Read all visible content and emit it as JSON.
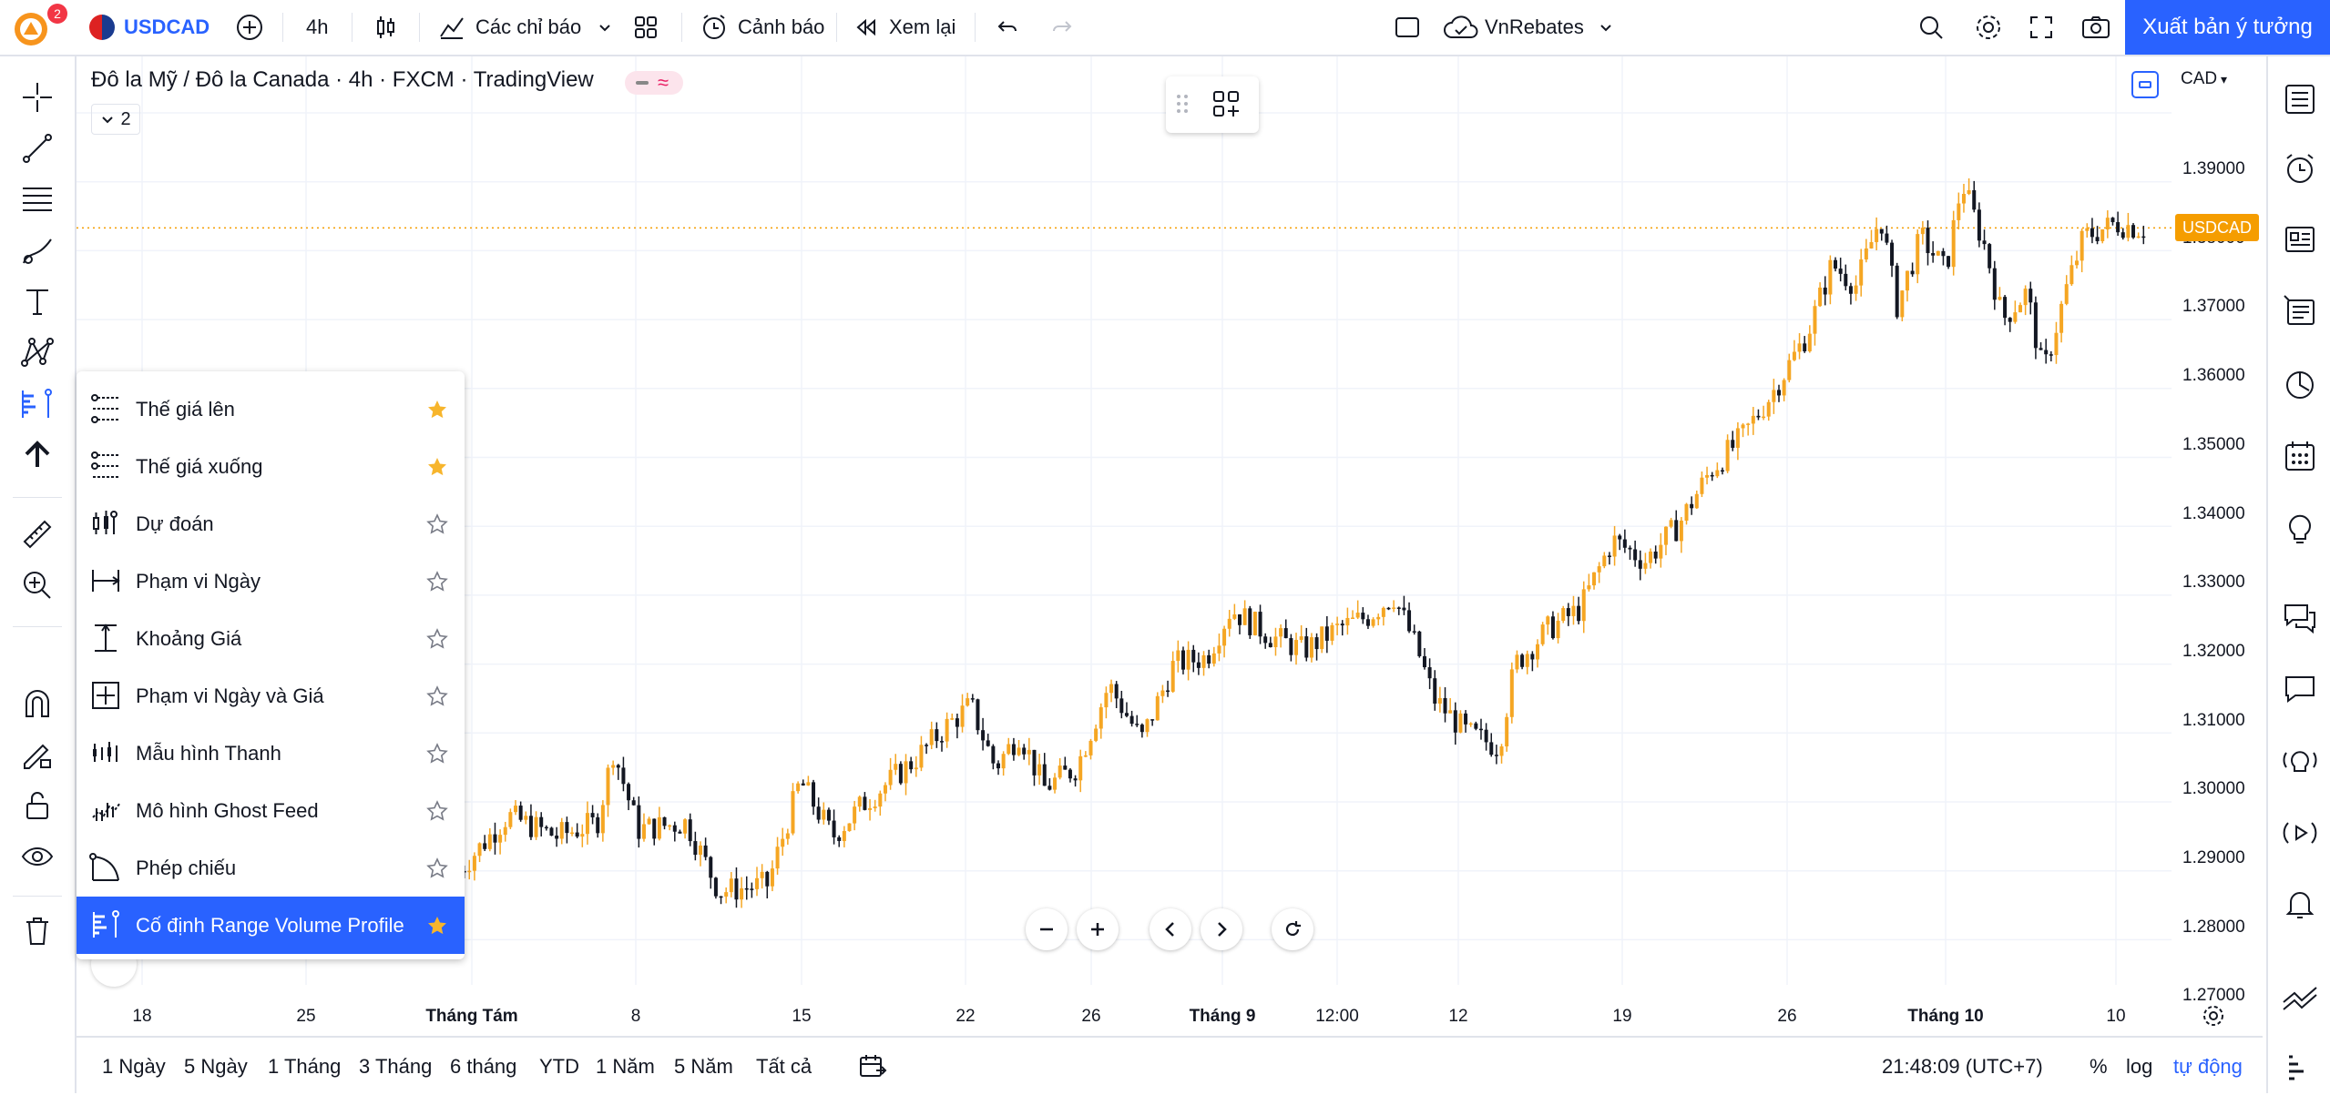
{
  "topbar": {
    "notification_count": "2",
    "symbol": "USDCAD",
    "interval": "4h",
    "indicators_label": "Các chỉ báo",
    "alert_label": "Cảnh báo",
    "replay_label": "Xem lại",
    "layout_name": "VnRebates",
    "publish_label": "Xuất bản ý tưởng"
  },
  "legend": {
    "title": "Đô la Mỹ / Đô la Canada · 4h · FXCM · TradingView",
    "collapse_count": "2"
  },
  "price_axis": {
    "currency": "CAD",
    "ticks": [
      "1.39000",
      "1.38000",
      "1.37000",
      "1.36000",
      "1.35000",
      "1.34000",
      "1.33000",
      "1.32000",
      "1.31000",
      "1.30000",
      "1.29000",
      "1.28000",
      "1.27000"
    ],
    "symbol_badge": "USDCAD",
    "last_price": 1.3733
  },
  "time_axis": {
    "ticks": [
      {
        "label": "18",
        "bold": false
      },
      {
        "label": "25",
        "bold": false
      },
      {
        "label": "Tháng Tám",
        "bold": true
      },
      {
        "label": "8",
        "bold": false
      },
      {
        "label": "15",
        "bold": false
      },
      {
        "label": "22",
        "bold": false
      },
      {
        "label": "26",
        "bold": false
      },
      {
        "label": "Tháng 9",
        "bold": true
      },
      {
        "label": "12:00",
        "bold": false
      },
      {
        "label": "12",
        "bold": false
      },
      {
        "label": "19",
        "bold": false
      },
      {
        "label": "26",
        "bold": false
      },
      {
        "label": "Tháng 10",
        "bold": true
      },
      {
        "label": "10",
        "bold": false
      }
    ]
  },
  "bottombar": {
    "ranges": [
      "1 Ngày",
      "5 Ngày",
      "1 Tháng",
      "3 Tháng",
      "6 tháng",
      "YTD",
      "1 Năm",
      "5 Năm",
      "Tất cả"
    ],
    "clock": "21:48:09 (UTC+7)",
    "percent_label": "%",
    "log_label": "log",
    "auto_label": "tự động"
  },
  "menu": {
    "items": [
      {
        "label": "Thế giá lên",
        "icon": "long-position-icon",
        "starred": true
      },
      {
        "label": "Thế giá xuống",
        "icon": "short-position-icon",
        "starred": true
      },
      {
        "label": "Dự đoán",
        "icon": "forecast-icon",
        "starred": false
      },
      {
        "label": "Phạm vi Ngày",
        "icon": "date-range-icon",
        "starred": false
      },
      {
        "label": "Khoảng Giá",
        "icon": "price-range-icon",
        "starred": false
      },
      {
        "label": "Phạm vi Ngày và Giá",
        "icon": "date-price-range-icon",
        "starred": false
      },
      {
        "label": "Mẫu hình Thanh",
        "icon": "bars-pattern-icon",
        "starred": false
      },
      {
        "label": "Mô hình Ghost Feed",
        "icon": "ghost-feed-icon",
        "starred": false
      },
      {
        "label": "Phép chiếu",
        "icon": "projection-icon",
        "starred": false
      },
      {
        "label": "Cố định Range Volume Profile",
        "icon": "fixed-range-volume-profile-icon",
        "starred": true,
        "selected": true
      }
    ]
  },
  "colors": {
    "up": "#f5a623",
    "down": "#131722",
    "accent": "#2962ff",
    "badge": "#f59d00",
    "star": "#f7b52c"
  },
  "chart_data": {
    "type": "candlestick",
    "symbol": "USDCAD",
    "timeframe": "4h",
    "ylim": [
      1.265,
      1.393
    ],
    "close_path": [
      [
        0.0,
        1.28
      ],
      [
        0.03,
        1.288
      ],
      [
        0.06,
        1.285
      ],
      [
        0.085,
        1.287
      ],
      [
        0.095,
        1.2975
      ],
      [
        0.11,
        1.286
      ],
      [
        0.14,
        1.287
      ],
      [
        0.16,
        1.277
      ],
      [
        0.19,
        1.278
      ],
      [
        0.21,
        1.293
      ],
      [
        0.23,
        1.285
      ],
      [
        0.25,
        1.29
      ],
      [
        0.28,
        1.296
      ],
      [
        0.3,
        1.301
      ],
      [
        0.315,
        1.304
      ],
      [
        0.33,
        1.295
      ],
      [
        0.345,
        1.3
      ],
      [
        0.36,
        1.292
      ],
      [
        0.38,
        1.295
      ],
      [
        0.4,
        1.307
      ],
      [
        0.42,
        1.299
      ],
      [
        0.44,
        1.31
      ],
      [
        0.46,
        1.311
      ],
      [
        0.475,
        1.318
      ],
      [
        0.5,
        1.314
      ],
      [
        0.52,
        1.312
      ],
      [
        0.54,
        1.315
      ],
      [
        0.56,
        1.317
      ],
      [
        0.575,
        1.32
      ],
      [
        0.59,
        1.312
      ],
      [
        0.6,
        1.305
      ],
      [
        0.62,
        1.3
      ],
      [
        0.64,
        1.298
      ],
      [
        0.65,
        1.31
      ],
      [
        0.67,
        1.315
      ],
      [
        0.69,
        1.318
      ],
      [
        0.71,
        1.328
      ],
      [
        0.73,
        1.325
      ],
      [
        0.75,
        1.33
      ],
      [
        0.77,
        1.338
      ],
      [
        0.79,
        1.343
      ],
      [
        0.81,
        1.35
      ],
      [
        0.83,
        1.358
      ],
      [
        0.845,
        1.368
      ],
      [
        0.86,
        1.365
      ],
      [
        0.875,
        1.375
      ],
      [
        0.885,
        1.362
      ],
      [
        0.9,
        1.372
      ],
      [
        0.915,
        1.367
      ],
      [
        0.925,
        1.38
      ],
      [
        0.94,
        1.37
      ],
      [
        0.95,
        1.36
      ],
      [
        0.965,
        1.364
      ],
      [
        0.975,
        1.352
      ],
      [
        0.99,
        1.365
      ],
      [
        1.0,
        1.372
      ],
      [
        1.02,
        1.374
      ],
      [
        1.04,
        1.373
      ]
    ]
  }
}
